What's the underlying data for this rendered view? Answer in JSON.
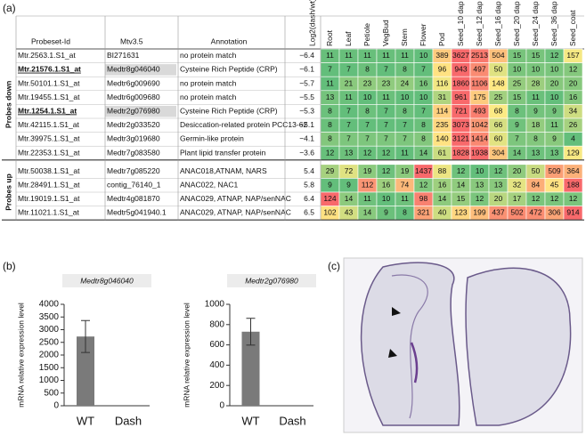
{
  "labels": {
    "a": "(a)",
    "b": "(b)",
    "c": "(c)"
  },
  "table": {
    "headers": [
      "Probeset-Id",
      "Mtv3.5",
      "Annotation",
      "Log2(dash/wt)"
    ],
    "tissues": [
      "Root",
      "Leaf",
      "Petiole",
      "VegBud",
      "Stem",
      "Flower",
      "Pod",
      "Seed_10 dap",
      "Seed_12 dap",
      "Seed_16 dap",
      "Seed_20 dap",
      "Seed_24 dap",
      "Seed_36 dap",
      "Seed_coat"
    ],
    "heatmap_colors": [
      "#63be7b",
      "#ffeb84",
      "#f8696b"
    ],
    "groups": [
      {
        "label": "Probes down",
        "rows": [
          {
            "probe": "Mtr.2563.1.S1_at",
            "mtv": "BI271631",
            "annotation": "no protein match",
            "log2": "−6.4",
            "values": [
              11,
              11,
              11,
              11,
              11,
              10,
              389,
              3627,
              2513,
              504,
              15,
              15,
              12,
              157
            ]
          },
          {
            "probe": "Mtr.21576.1.S1_at",
            "mtv": "Medtr8g046040",
            "annotation": "Cysteine Rich Peptide (CRP)",
            "log2": "−6.1",
            "highlighted": true,
            "values": [
              7,
              7,
              8,
              7,
              8,
              7,
              96,
              943,
              497,
              50,
              10,
              10,
              10,
              12
            ]
          },
          {
            "probe": "Mtr.50101.1.S1_at",
            "mtv": "Medtr6g009690",
            "annotation": "no protein match",
            "log2": "−5.7",
            "values": [
              11,
              21,
              23,
              23,
              24,
              16,
              116,
              1860,
              1106,
              148,
              25,
              28,
              20,
              20
            ]
          },
          {
            "probe": "Mtr.19455.1.S1_at",
            "mtv": "Medtr6g009680",
            "annotation": "no protein match",
            "log2": "−5.5",
            "values": [
              13,
              11,
              10,
              11,
              10,
              10,
              31,
              961,
              175,
              25,
              15,
              11,
              10,
              16
            ]
          },
          {
            "probe": "Mtr.1254.1.S1_at",
            "mtv": "Medtr2g076980",
            "annotation": "Cysteine Rich Peptide (CRP)",
            "log2": "−5.3",
            "highlighted": true,
            "values": [
              8,
              7,
              8,
              7,
              8,
              7,
              114,
              721,
              493,
              68,
              8,
              9,
              9,
              34
            ]
          },
          {
            "probe": "Mtr.42115.1.S1_at",
            "mtv": "Medtr2g033520",
            "annotation": "Desiccation-related protein PCC13-62",
            "log2": "−5.1",
            "values": [
              8,
              7,
              7,
              7,
              7,
              8,
              235,
              3073,
              1042,
              66,
              9,
              18,
              11,
              26
            ]
          },
          {
            "probe": "Mtr.39975.1.S1_at",
            "mtv": "Medtr3g019680",
            "annotation": "Germin-like protein",
            "log2": "−4.1",
            "values": [
              8,
              7,
              7,
              7,
              7,
              8,
              140,
              3121,
              1414,
              60,
              7,
              8,
              9,
              4
            ]
          },
          {
            "probe": "Mtr.22353.1.S1_at",
            "mtv": "Medtr7g083580",
            "annotation": "Plant lipid transfer protein",
            "log2": "−3.6",
            "values": [
              12,
              13,
              12,
              12,
              11,
              14,
              61,
              1828,
              1938,
              304,
              14,
              13,
              13,
              129
            ]
          }
        ]
      },
      {
        "label": "Probes up",
        "rows": [
          {
            "probe": "Mtr.50038.1.S1_at",
            "mtv": "Medtr7g085220",
            "annotation": "ANAC018,ATNAM, NARS",
            "log2": "5.4",
            "values": [
              29,
              72,
              19,
              12,
              19,
              1437,
              88,
              12,
              10,
              12,
              20,
              50,
              509,
              364
            ]
          },
          {
            "probe": "Mtr.28491.1.S1_at",
            "mtv": "contig_76140_1",
            "annotation": "ANAC022, NAC1",
            "log2": "5.8",
            "values": [
              9,
              9,
              112,
              16,
              74,
              12,
              16,
              14,
              13,
              13,
              32,
              84,
              45,
              188
            ]
          },
          {
            "probe": "Mtr.19019.1.S1_at",
            "mtv": "Medtr4g081870",
            "annotation": "ANAC029, ATNAP, NAP/senNAC",
            "log2": "6.4",
            "values": [
              124,
              14,
              11,
              10,
              11,
              98,
              14,
              15,
              12,
              20,
              17,
              12,
              12,
              12
            ]
          },
          {
            "probe": "Mtr.11021.1.S1_at",
            "mtv": "Medtr5g041940.1",
            "annotation": "ANAC029, ATNAP, NAP/senNAC",
            "log2": "6.5",
            "values": [
              102,
              43,
              14,
              9,
              8,
              321,
              40,
              123,
              199,
              437,
              502,
              472,
              306,
              914
            ]
          }
        ]
      }
    ]
  },
  "chart_data": [
    {
      "type": "bar",
      "title": "Medtr8g046040",
      "y_label": "mRNA relative expression level",
      "categories": [
        "WT",
        "Dash"
      ],
      "values": [
        2730,
        0
      ],
      "errors": [
        630,
        0
      ],
      "color": "#7a7a7a",
      "ylim": [
        0,
        4000
      ],
      "yticks": [
        0,
        500,
        1000,
        1500,
        2000,
        2500,
        3000,
        3500,
        4000
      ]
    },
    {
      "type": "bar",
      "title": "Medtr2g076980",
      "y_label": "mRNA relative expression level",
      "categories": [
        "WT",
        "Dash"
      ],
      "values": [
        730,
        0
      ],
      "errors": [
        132,
        0
      ],
      "color": "#7a7a7a",
      "ylim": [
        0,
        1000
      ],
      "yticks": [
        0,
        200,
        400,
        600,
        800,
        1000
      ]
    }
  ]
}
